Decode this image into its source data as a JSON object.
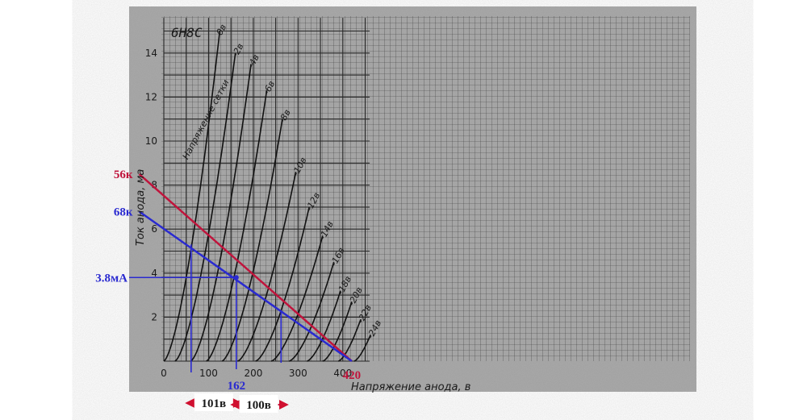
{
  "chart_data": {
    "type": "line",
    "tube_model": "6Н8С",
    "xlabel": "Напряжение анода, в",
    "ylabel": "Ток анода, ма",
    "xlim": [
      0,
      460
    ],
    "ylim": [
      0,
      16
    ],
    "x_ticks": [
      "0",
      "100",
      "200",
      "300",
      "400"
    ],
    "y_ticks": [
      "2",
      "4",
      "6",
      "8",
      "10",
      "12",
      "14"
    ],
    "grid": true,
    "series": [
      {
        "name": "Напряжение сетки",
        "label": "0в",
        "x0": 0,
        "x_end": 125,
        "y_end": 15
      },
      {
        "name": "-2в",
        "label": "-2в",
        "x0": 25,
        "x_end": 160,
        "y_end": 14
      },
      {
        "name": "-4в",
        "label": "-4в",
        "x0": 60,
        "x_end": 195,
        "y_end": 13.5
      },
      {
        "name": "-6в",
        "label": "-6в",
        "x0": 95,
        "x_end": 230,
        "y_end": 12.3
      },
      {
        "name": "-8в",
        "label": "-8в",
        "x0": 130,
        "x_end": 265,
        "y_end": 11
      },
      {
        "name": "-10в",
        "label": "-10в",
        "x0": 165,
        "x_end": 295,
        "y_end": 8.6
      },
      {
        "name": "-12в",
        "label": "-12в",
        "x0": 205,
        "x_end": 325,
        "y_end": 7
      },
      {
        "name": "-14в",
        "label": "-14в",
        "x0": 240,
        "x_end": 355,
        "y_end": 5.7
      },
      {
        "name": "-16в",
        "label": "-16в",
        "x0": 280,
        "x_end": 380,
        "y_end": 4.5
      },
      {
        "name": "-18в",
        "label": "-18в",
        "x0": 320,
        "x_end": 395,
        "y_end": 3.2
      },
      {
        "name": "-20в",
        "label": "-20в",
        "x0": 355,
        "x_end": 420,
        "y_end": 2.7
      },
      {
        "name": "-22в",
        "label": "-22в",
        "x0": 390,
        "x_end": 440,
        "y_end": 1.9
      },
      {
        "name": "-24в",
        "label": "-24в",
        "x0": 425,
        "x_end": 462,
        "y_end": 1.2
      }
    ],
    "load_lines": [
      {
        "name": "56к",
        "color": "#c0143c",
        "x1": -55,
        "y1": 8.5,
        "x2": 420,
        "y2": 0
      },
      {
        "name": "68к",
        "color": "#2a2ad0",
        "x1": -55,
        "y1": 6.8,
        "x2": 420,
        "y2": 0
      }
    ],
    "annotations": {
      "current": "3.8мА",
      "supply": "420",
      "q_voltage": "162",
      "swing_left": "101в",
      "swing_right": "100в",
      "points": {
        "left_x": 61,
        "left_y": 5.3,
        "q_x": 162,
        "q_y": 3.8,
        "right_x": 262,
        "right_y": 2.3
      }
    },
    "colors": {
      "red": "#c0143c",
      "blue": "#2a2ad0",
      "grid": "#4a4a4a",
      "paper": "#9a9a9a"
    }
  }
}
